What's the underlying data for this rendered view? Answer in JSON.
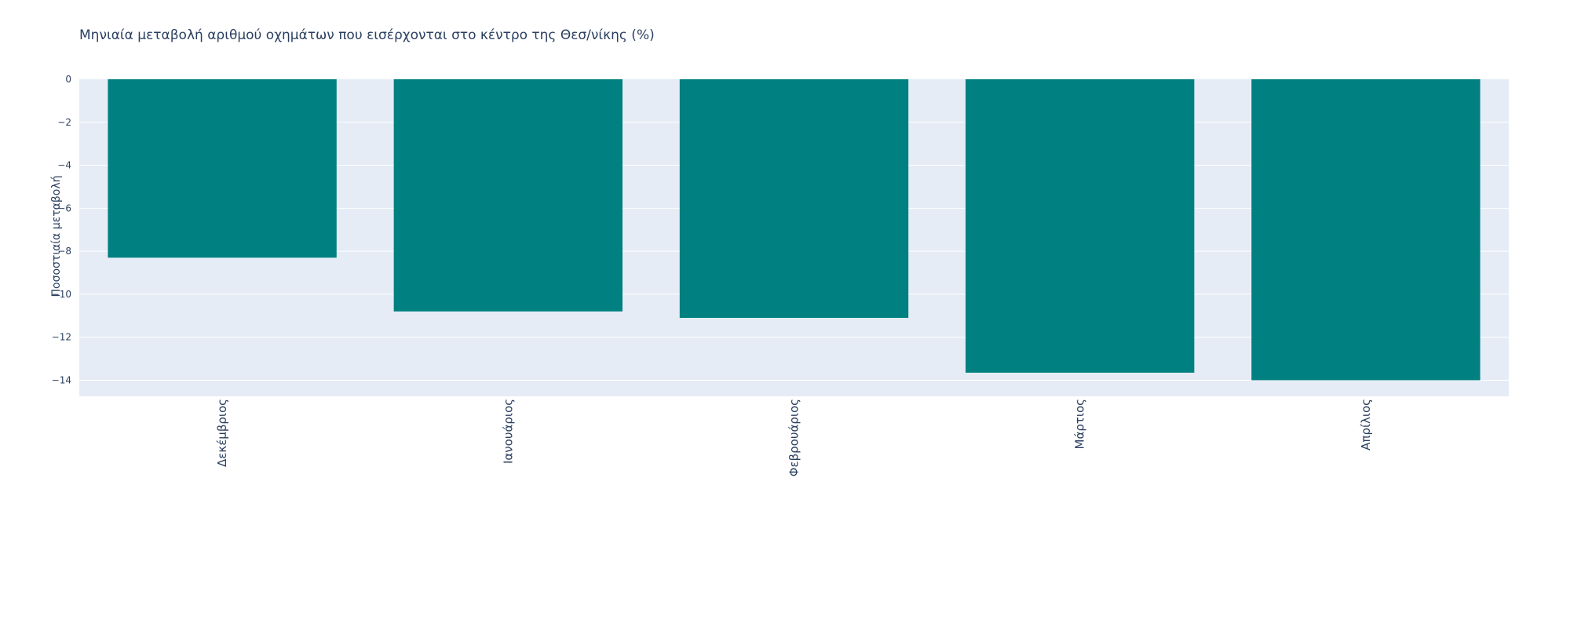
{
  "chart_data": {
    "type": "bar",
    "title": "Μηνιαία μεταβολή αριθμού οχημάτων που εισέρχονται στο κέντρο της Θεσ/νίκης (%)",
    "xlabel": "",
    "ylabel": "Ποσοστιαία μεταβολή",
    "categories": [
      "Δεκέμβριος",
      "Ιανουάριος",
      "Φεβρουάριος",
      "Μάρτιος",
      "Απρίλιος"
    ],
    "values": [
      -8.3,
      -10.8,
      -11.1,
      -13.65,
      -14.0
    ],
    "ylim": [
      -14.75,
      0
    ],
    "yticks": [
      0,
      -2,
      -4,
      -6,
      -8,
      -10,
      -12,
      -14
    ],
    "ytick_labels": [
      "0",
      "−2",
      "−4",
      "−6",
      "−8",
      "−10",
      "−12",
      "−14"
    ],
    "bar_color": "#008080",
    "plot_background": "#e5ecf6",
    "grid": true,
    "legend": "none"
  }
}
